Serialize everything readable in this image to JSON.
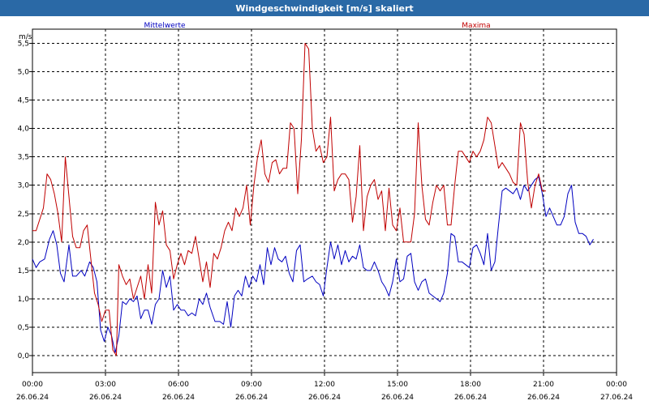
{
  "window": {
    "title": "Windgeschwindigkeit [m/s] skaliert"
  },
  "chart_data": {
    "type": "line",
    "title": "Windgeschwindigkeit [m/s] skaliert",
    "ylabel": "m/s",
    "xlabel": "",
    "ylim": [
      -0.3,
      5.75
    ],
    "xlim": [
      0,
      24
    ],
    "yticks": [
      "0,0",
      "0,5",
      "1,0",
      "1,5",
      "2,0",
      "2,5",
      "3,0",
      "3,5",
      "4,0",
      "4,5",
      "5,0",
      "5,5"
    ],
    "xticks": [
      {
        "time": "00:00",
        "date": "26.06.24"
      },
      {
        "time": "03:00",
        "date": "26.06.24"
      },
      {
        "time": "06:00",
        "date": "26.06.24"
      },
      {
        "time": "09:00",
        "date": "26.06.24"
      },
      {
        "time": "12:00",
        "date": "26.06.24"
      },
      {
        "time": "15:00",
        "date": "26.06.24"
      },
      {
        "time": "18:00",
        "date": "26.06.24"
      },
      {
        "time": "21:00",
        "date": "26.06.24"
      },
      {
        "time": "00:00",
        "date": "27.06.24"
      }
    ],
    "grid": true,
    "legend_placement": "top",
    "series": [
      {
        "name": "Mittelwerte",
        "color": "#0000c0",
        "values": [
          [
            0,
            1.7
          ],
          [
            0.15,
            1.55
          ],
          [
            0.3,
            1.65
          ],
          [
            0.5,
            1.7
          ],
          [
            0.7,
            2.05
          ],
          [
            0.85,
            2.2
          ],
          [
            1.0,
            1.95
          ],
          [
            1.15,
            1.45
          ],
          [
            1.3,
            1.3
          ],
          [
            1.5,
            1.95
          ],
          [
            1.65,
            1.4
          ],
          [
            1.8,
            1.4
          ],
          [
            2.0,
            1.5
          ],
          [
            2.15,
            1.4
          ],
          [
            2.35,
            1.65
          ],
          [
            2.5,
            1.55
          ],
          [
            2.65,
            1.3
          ],
          [
            2.8,
            0.45
          ],
          [
            2.95,
            0.25
          ],
          [
            3.1,
            0.5
          ],
          [
            3.25,
            0.35
          ],
          [
            3.4,
            0.05
          ],
          [
            3.55,
            0.35
          ],
          [
            3.7,
            0.95
          ],
          [
            3.85,
            0.9
          ],
          [
            4.0,
            1.0
          ],
          [
            4.15,
            0.95
          ],
          [
            4.3,
            1.05
          ],
          [
            4.45,
            0.65
          ],
          [
            4.6,
            0.8
          ],
          [
            4.75,
            0.8
          ],
          [
            4.9,
            0.55
          ],
          [
            5.05,
            0.9
          ],
          [
            5.2,
            1.0
          ],
          [
            5.35,
            1.5
          ],
          [
            5.5,
            1.2
          ],
          [
            5.65,
            1.4
          ],
          [
            5.8,
            0.8
          ],
          [
            5.95,
            0.9
          ],
          [
            6.1,
            0.8
          ],
          [
            6.25,
            0.8
          ],
          [
            6.4,
            0.7
          ],
          [
            6.55,
            0.75
          ],
          [
            6.7,
            0.7
          ],
          [
            6.85,
            1.0
          ],
          [
            7.0,
            0.9
          ],
          [
            7.15,
            1.1
          ],
          [
            7.3,
            0.85
          ],
          [
            7.5,
            0.6
          ],
          [
            7.7,
            0.6
          ],
          [
            7.85,
            0.55
          ],
          [
            8.0,
            0.95
          ],
          [
            8.15,
            0.5
          ],
          [
            8.3,
            1.05
          ],
          [
            8.45,
            1.15
          ],
          [
            8.6,
            1.05
          ],
          [
            8.75,
            1.4
          ],
          [
            8.9,
            1.2
          ],
          [
            9.05,
            1.4
          ],
          [
            9.2,
            1.3
          ],
          [
            9.35,
            1.6
          ],
          [
            9.5,
            1.25
          ],
          [
            9.65,
            1.9
          ],
          [
            9.8,
            1.6
          ],
          [
            9.95,
            1.9
          ],
          [
            10.1,
            1.7
          ],
          [
            10.25,
            1.65
          ],
          [
            10.4,
            1.75
          ],
          [
            10.55,
            1.45
          ],
          [
            10.7,
            1.3
          ],
          [
            10.85,
            1.85
          ],
          [
            11.0,
            1.95
          ],
          [
            11.15,
            1.3
          ],
          [
            11.3,
            1.35
          ],
          [
            11.5,
            1.4
          ],
          [
            11.65,
            1.3
          ],
          [
            11.8,
            1.25
          ],
          [
            11.95,
            1.05
          ],
          [
            12.1,
            1.55
          ],
          [
            12.25,
            2.0
          ],
          [
            12.4,
            1.7
          ],
          [
            12.55,
            1.95
          ],
          [
            12.7,
            1.6
          ],
          [
            12.85,
            1.85
          ],
          [
            13.0,
            1.65
          ],
          [
            13.15,
            1.75
          ],
          [
            13.3,
            1.7
          ],
          [
            13.45,
            1.95
          ],
          [
            13.6,
            1.55
          ],
          [
            13.75,
            1.5
          ],
          [
            13.9,
            1.5
          ],
          [
            14.05,
            1.65
          ],
          [
            14.2,
            1.5
          ],
          [
            14.35,
            1.3
          ],
          [
            14.5,
            1.2
          ],
          [
            14.65,
            1.05
          ],
          [
            14.8,
            1.3
          ],
          [
            14.95,
            1.7
          ],
          [
            15.1,
            1.3
          ],
          [
            15.25,
            1.35
          ],
          [
            15.4,
            1.75
          ],
          [
            15.55,
            1.8
          ],
          [
            15.7,
            1.3
          ],
          [
            15.85,
            1.15
          ],
          [
            16.0,
            1.3
          ],
          [
            16.15,
            1.35
          ],
          [
            16.3,
            1.1
          ],
          [
            16.45,
            1.05
          ],
          [
            16.6,
            1.0
          ],
          [
            16.75,
            0.95
          ],
          [
            16.9,
            1.1
          ],
          [
            17.05,
            1.45
          ],
          [
            17.2,
            2.15
          ],
          [
            17.35,
            2.1
          ],
          [
            17.5,
            1.65
          ],
          [
            17.65,
            1.65
          ],
          [
            17.8,
            1.6
          ],
          [
            17.95,
            1.55
          ],
          [
            18.1,
            1.9
          ],
          [
            18.25,
            1.95
          ],
          [
            18.4,
            1.8
          ],
          [
            18.55,
            1.6
          ],
          [
            18.7,
            2.15
          ],
          [
            18.85,
            1.5
          ],
          [
            19.0,
            1.65
          ],
          [
            19.15,
            2.3
          ],
          [
            19.3,
            2.9
          ],
          [
            19.45,
            2.95
          ],
          [
            19.6,
            2.9
          ],
          [
            19.75,
            2.85
          ],
          [
            19.9,
            2.95
          ],
          [
            20.05,
            2.75
          ],
          [
            20.2,
            3.0
          ],
          [
            20.35,
            2.9
          ],
          [
            20.5,
            3.0
          ],
          [
            20.65,
            3.1
          ],
          [
            20.8,
            3.15
          ],
          [
            20.95,
            2.85
          ],
          [
            21.1,
            2.45
          ],
          [
            21.25,
            2.6
          ],
          [
            21.4,
            2.45
          ],
          [
            21.55,
            2.3
          ],
          [
            21.7,
            2.3
          ],
          [
            21.85,
            2.45
          ],
          [
            22.0,
            2.85
          ],
          [
            22.15,
            3.0
          ],
          [
            22.3,
            2.35
          ],
          [
            22.45,
            2.15
          ],
          [
            22.6,
            2.15
          ],
          [
            22.75,
            2.1
          ],
          [
            22.9,
            1.95
          ],
          [
            23.05,
            2.05
          ]
        ]
      },
      {
        "name": "Maxima",
        "color": "#c00000",
        "values": [
          [
            0,
            2.2
          ],
          [
            0.15,
            2.2
          ],
          [
            0.3,
            2.4
          ],
          [
            0.45,
            2.6
          ],
          [
            0.6,
            3.2
          ],
          [
            0.75,
            3.1
          ],
          [
            0.9,
            2.85
          ],
          [
            1.05,
            2.5
          ],
          [
            1.2,
            2.0
          ],
          [
            1.35,
            3.5
          ],
          [
            1.5,
            2.8
          ],
          [
            1.65,
            2.1
          ],
          [
            1.8,
            1.9
          ],
          [
            1.95,
            1.9
          ],
          [
            2.1,
            2.2
          ],
          [
            2.25,
            2.3
          ],
          [
            2.4,
            1.7
          ],
          [
            2.55,
            1.1
          ],
          [
            2.7,
            0.9
          ],
          [
            2.85,
            0.6
          ],
          [
            3.0,
            0.8
          ],
          [
            3.15,
            0.8
          ],
          [
            3.3,
            0.1
          ],
          [
            3.45,
            0.0
          ],
          [
            3.55,
            1.6
          ],
          [
            3.7,
            1.4
          ],
          [
            3.85,
            1.25
          ],
          [
            4.0,
            1.35
          ],
          [
            4.15,
            1.0
          ],
          [
            4.3,
            1.2
          ],
          [
            4.45,
            1.4
          ],
          [
            4.6,
            1.0
          ],
          [
            4.75,
            1.6
          ],
          [
            4.9,
            1.1
          ],
          [
            5.05,
            2.7
          ],
          [
            5.2,
            2.3
          ],
          [
            5.35,
            2.55
          ],
          [
            5.5,
            1.95
          ],
          [
            5.65,
            1.85
          ],
          [
            5.8,
            1.35
          ],
          [
            5.95,
            1.6
          ],
          [
            6.1,
            1.8
          ],
          [
            6.25,
            1.6
          ],
          [
            6.4,
            1.85
          ],
          [
            6.55,
            1.8
          ],
          [
            6.7,
            2.1
          ],
          [
            6.85,
            1.7
          ],
          [
            7.0,
            1.3
          ],
          [
            7.15,
            1.65
          ],
          [
            7.3,
            1.2
          ],
          [
            7.45,
            1.8
          ],
          [
            7.6,
            1.7
          ],
          [
            7.75,
            1.9
          ],
          [
            7.9,
            2.2
          ],
          [
            8.05,
            2.35
          ],
          [
            8.2,
            2.2
          ],
          [
            8.35,
            2.6
          ],
          [
            8.5,
            2.45
          ],
          [
            8.65,
            2.6
          ],
          [
            8.8,
            3.0
          ],
          [
            8.95,
            2.3
          ],
          [
            9.1,
            3.0
          ],
          [
            9.25,
            3.5
          ],
          [
            9.4,
            3.8
          ],
          [
            9.55,
            3.2
          ],
          [
            9.7,
            3.05
          ],
          [
            9.85,
            3.4
          ],
          [
            10.0,
            3.45
          ],
          [
            10.15,
            3.2
          ],
          [
            10.3,
            3.3
          ],
          [
            10.45,
            3.3
          ],
          [
            10.6,
            4.1
          ],
          [
            10.75,
            4.0
          ],
          [
            10.9,
            2.85
          ],
          [
            11.05,
            3.8
          ],
          [
            11.2,
            5.5
          ],
          [
            11.35,
            5.4
          ],
          [
            11.5,
            4.0
          ],
          [
            11.65,
            3.6
          ],
          [
            11.8,
            3.7
          ],
          [
            11.95,
            3.4
          ],
          [
            12.1,
            3.5
          ],
          [
            12.25,
            4.2
          ],
          [
            12.4,
            2.9
          ],
          [
            12.55,
            3.1
          ],
          [
            12.7,
            3.2
          ],
          [
            12.85,
            3.2
          ],
          [
            13.0,
            3.1
          ],
          [
            13.15,
            2.35
          ],
          [
            13.3,
            2.8
          ],
          [
            13.45,
            3.7
          ],
          [
            13.6,
            2.2
          ],
          [
            13.75,
            2.8
          ],
          [
            13.9,
            3.0
          ],
          [
            14.05,
            3.1
          ],
          [
            14.2,
            2.75
          ],
          [
            14.35,
            2.9
          ],
          [
            14.5,
            2.2
          ],
          [
            14.65,
            2.95
          ],
          [
            14.8,
            2.3
          ],
          [
            14.95,
            2.2
          ],
          [
            15.1,
            2.6
          ],
          [
            15.25,
            2.0
          ],
          [
            15.4,
            2.0
          ],
          [
            15.55,
            2.0
          ],
          [
            15.7,
            2.5
          ],
          [
            15.85,
            4.1
          ],
          [
            16.0,
            3.0
          ],
          [
            16.15,
            2.4
          ],
          [
            16.3,
            2.3
          ],
          [
            16.45,
            2.7
          ],
          [
            16.6,
            3.0
          ],
          [
            16.75,
            2.9
          ],
          [
            16.9,
            3.0
          ],
          [
            17.05,
            2.3
          ],
          [
            17.2,
            2.3
          ],
          [
            17.35,
            3.0
          ],
          [
            17.5,
            3.6
          ],
          [
            17.65,
            3.6
          ],
          [
            17.8,
            3.5
          ],
          [
            17.95,
            3.4
          ],
          [
            18.1,
            3.6
          ],
          [
            18.25,
            3.5
          ],
          [
            18.4,
            3.6
          ],
          [
            18.55,
            3.8
          ],
          [
            18.7,
            4.2
          ],
          [
            18.85,
            4.1
          ],
          [
            19.0,
            3.7
          ],
          [
            19.15,
            3.3
          ],
          [
            19.3,
            3.4
          ],
          [
            19.45,
            3.3
          ],
          [
            19.6,
            3.2
          ],
          [
            19.75,
            3.05
          ],
          [
            19.9,
            3.0
          ],
          [
            20.05,
            4.1
          ],
          [
            20.2,
            3.9
          ],
          [
            20.35,
            3.05
          ],
          [
            20.5,
            2.6
          ],
          [
            20.65,
            3.0
          ],
          [
            20.8,
            3.2
          ],
          [
            20.95,
            2.9
          ],
          [
            21.1,
            2.9
          ]
        ]
      }
    ]
  }
}
